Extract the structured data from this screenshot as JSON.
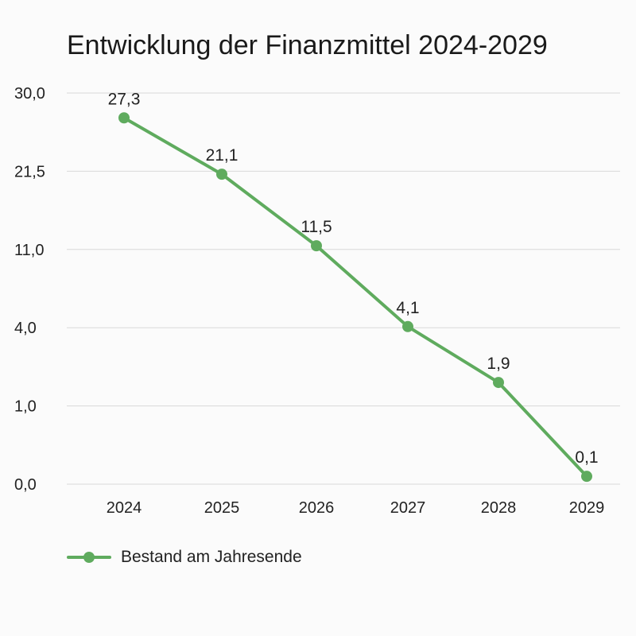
{
  "chart_data": {
    "type": "line",
    "title": "Entwicklung der Finanzmittel 2024-2029",
    "xlabel": "",
    "ylabel": "",
    "categories": [
      "2024",
      "2025",
      "2026",
      "2027",
      "2028",
      "2029"
    ],
    "y_ticks": [
      "30,0",
      "21,5",
      "11,0",
      "4,0",
      "1,0",
      "0,0"
    ],
    "series": [
      {
        "name": "Bestand am Jahresende",
        "values": [
          27.3,
          21.1,
          11.5,
          4.1,
          1.9,
          0.1
        ],
        "labels": [
          "27,3",
          "21,1",
          "11,5",
          "4,1",
          "1,9",
          "0,1"
        ],
        "color": "#5fab5e"
      }
    ],
    "grid": true,
    "legend_position": "bottom-left"
  }
}
